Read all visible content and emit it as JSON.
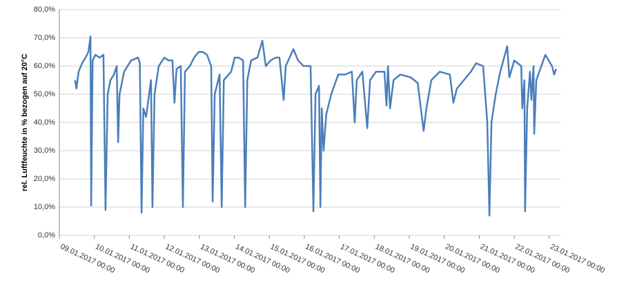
{
  "chart_data": {
    "type": "line",
    "y_label": "rel. Luftfeuchte in % bezogen auf 20°C",
    "xlim": [
      0,
      14.32
    ],
    "ylim": [
      0,
      80
    ],
    "yticks": [
      {
        "value": 0,
        "label": "0,0%"
      },
      {
        "value": 10,
        "label": "10,0%"
      },
      {
        "value": 20,
        "label": "20,0%"
      },
      {
        "value": 30,
        "label": "30,0%"
      },
      {
        "value": 40,
        "label": "40,0%"
      },
      {
        "value": 50,
        "label": "50,0%"
      },
      {
        "value": 60,
        "label": "60,0%"
      },
      {
        "value": 70,
        "label": "70,0%"
      },
      {
        "value": 80,
        "label": "80,0%"
      }
    ],
    "xticks": [
      {
        "value": 0,
        "label": "09.01.2017 00:00"
      },
      {
        "value": 1,
        "label": "10.01.2017 00:00"
      },
      {
        "value": 2,
        "label": "11.01.2017 00:00"
      },
      {
        "value": 3,
        "label": "12.01.2017 00:00"
      },
      {
        "value": 4,
        "label": "13.01.2017 00:00"
      },
      {
        "value": 5,
        "label": "14.01.2017 00:00"
      },
      {
        "value": 6,
        "label": "15.01.2017 00:00"
      },
      {
        "value": 7,
        "label": "16.01.2017 00:00"
      },
      {
        "value": 8,
        "label": "17.01.2017 00:00"
      },
      {
        "value": 9,
        "label": "18.01.2017 00:00"
      },
      {
        "value": 10,
        "label": "19.01.2017 00:00"
      },
      {
        "value": 11,
        "label": "20.01.2017 00:00"
      },
      {
        "value": 12,
        "label": "21.01.2017 00:00"
      },
      {
        "value": 13,
        "label": "22.01.2017 00:00"
      },
      {
        "value": 14,
        "label": "23.01.2017 00:00"
      }
    ],
    "grid": true,
    "series": [
      {
        "color": "#4a7ebb",
        "x": [
          0.45,
          0.49,
          0.55,
          0.65,
          0.75,
          0.83,
          0.89,
          0.91,
          0.95,
          1.03,
          1.15,
          1.26,
          1.32,
          1.38,
          1.46,
          1.56,
          1.64,
          1.68,
          1.72,
          1.85,
          2.05,
          2.25,
          2.3,
          2.35,
          2.4,
          2.48,
          2.62,
          2.66,
          2.72,
          2.84,
          3.0,
          3.12,
          3.23,
          3.29,
          3.35,
          3.47,
          3.53,
          3.59,
          3.73,
          3.85,
          3.98,
          4.1,
          4.22,
          4.34,
          4.38,
          4.44,
          4.58,
          4.64,
          4.7,
          4.91,
          5.01,
          5.12,
          5.25,
          5.31,
          5.37,
          5.48,
          5.66,
          5.8,
          5.9,
          6.04,
          6.18,
          6.29,
          6.41,
          6.47,
          6.69,
          6.82,
          6.98,
          7.18,
          7.26,
          7.32,
          7.42,
          7.46,
          7.5,
          7.55,
          7.63,
          7.77,
          7.97,
          8.17,
          8.36,
          8.44,
          8.5,
          8.66,
          8.8,
          8.88,
          9.05,
          9.29,
          9.35,
          9.39,
          9.45,
          9.55,
          9.74,
          10.04,
          10.24,
          10.41,
          10.49,
          10.63,
          10.87,
          11.16,
          11.26,
          11.36,
          11.56,
          11.76,
          11.91,
          12.11,
          12.23,
          12.29,
          12.35,
          12.47,
          12.6,
          12.8,
          12.86,
          13.0,
          13.2,
          13.23,
          13.29,
          13.31,
          13.37,
          13.45,
          13.49,
          13.55,
          13.57,
          13.63,
          13.89,
          14.08,
          14.14,
          14.2
        ],
        "values": [
          55,
          52,
          58,
          61,
          63,
          65,
          70.5,
          10.5,
          62,
          64,
          63,
          64,
          9,
          50,
          55,
          57,
          60,
          33,
          50,
          58,
          62,
          63,
          61,
          8,
          45,
          42,
          55,
          10,
          50,
          60,
          63,
          62,
          62,
          47,
          59,
          60,
          10,
          58,
          60,
          63,
          65,
          65,
          64,
          60,
          12,
          50,
          57,
          10,
          55,
          58,
          63,
          63,
          62,
          10,
          55,
          62,
          63,
          69,
          60,
          62,
          63,
          63,
          48,
          60,
          66,
          62,
          60,
          60,
          8.5,
          50,
          53,
          10,
          45,
          30,
          43,
          50,
          57,
          57,
          58,
          40,
          55,
          58,
          38,
          55,
          58,
          58,
          46,
          60,
          45,
          55,
          57,
          56,
          54,
          37,
          45,
          55,
          58,
          57,
          47,
          52,
          55,
          58,
          61,
          60,
          40,
          7,
          40,
          50,
          58,
          67,
          56,
          62,
          60,
          45,
          55,
          8.5,
          45,
          58,
          48,
          60,
          36,
          55,
          64,
          60,
          57,
          59
        ]
      }
    ]
  }
}
